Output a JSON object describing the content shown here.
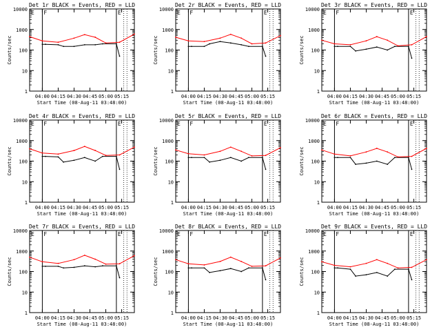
{
  "colors": {
    "events": "#000000",
    "lld": "#ff0000",
    "axes": "#000000",
    "background": "#ffffff"
  },
  "chart_data": [
    {
      "type": "line",
      "title": "Det 1r BLACK = Events, RED = LLD",
      "xlabel": "Start Time (08-Aug-11 03:48:00)",
      "ylabel": "Counts/sec",
      "yscale": "log",
      "ylim": [
        1,
        10000
      ],
      "xlim": [
        "03:48",
        "05:27"
      ],
      "yticks": [
        "1",
        "10",
        "100",
        "1000",
        "10000"
      ],
      "xticks": [
        "04:00",
        "04:15",
        "04:30",
        "04:45",
        "05:00",
        "05:15"
      ],
      "markers": [
        "E",
        "F",
        "E"
      ],
      "series": [
        {
          "name": "Events",
          "x": [
            "04:00",
            "04:03",
            "04:15",
            "04:20",
            "04:30",
            "04:40",
            "04:50",
            "04:57",
            "05:10",
            "05:13"
          ],
          "y": [
            190,
            190,
            180,
            150,
            150,
            180,
            180,
            200,
            200,
            50
          ]
        },
        {
          "name": "LLD",
          "x": [
            "03:48",
            "04:00",
            "04:15",
            "04:30",
            "04:40",
            "04:50",
            "05:00",
            "05:13",
            "05:27"
          ],
          "y": [
            450,
            280,
            240,
            380,
            560,
            420,
            220,
            240,
            600
          ]
        }
      ]
    },
    {
      "type": "line",
      "title": "Det 2r BLACK = Events, RED = LLD",
      "xlabel": "Start Time (08-Aug-11 03:48:00)",
      "ylabel": "Counts/sec",
      "yscale": "log",
      "ylim": [
        1,
        10000
      ],
      "xlim": [
        "03:48",
        "05:27"
      ],
      "yticks": [
        "1",
        "10",
        "100",
        "1000",
        "10000"
      ],
      "xticks": [
        "04:00",
        "04:15",
        "04:30",
        "04:45",
        "05:00",
        "05:15"
      ],
      "markers": [
        "E",
        "F",
        "E"
      ],
      "series": [
        {
          "name": "Events",
          "x": [
            "04:00",
            "04:03",
            "04:15",
            "04:20",
            "04:30",
            "04:40",
            "04:50",
            "04:57",
            "05:10",
            "05:13"
          ],
          "y": [
            150,
            150,
            150,
            200,
            260,
            220,
            180,
            150,
            150,
            50
          ]
        },
        {
          "name": "LLD",
          "x": [
            "03:48",
            "04:00",
            "04:15",
            "04:30",
            "04:40",
            "04:50",
            "05:00",
            "05:13",
            "05:27"
          ],
          "y": [
            420,
            280,
            260,
            380,
            580,
            380,
            200,
            220,
            500
          ]
        }
      ]
    },
    {
      "type": "line",
      "title": "Det 3r BLACK = Events, RED = LLD",
      "xlabel": "Start Time (08-Aug-11 03:48:00)",
      "ylabel": "Counts/sec",
      "yscale": "log",
      "ylim": [
        1,
        10000
      ],
      "xlim": [
        "03:48",
        "05:27"
      ],
      "yticks": [
        "1",
        "10",
        "100",
        "1000",
        "10000"
      ],
      "xticks": [
        "04:00",
        "04:15",
        "04:30",
        "04:45",
        "05:00",
        "05:15"
      ],
      "markers": [
        "E",
        "F",
        "E"
      ],
      "series": [
        {
          "name": "Events",
          "x": [
            "04:00",
            "04:03",
            "04:15",
            "04:20",
            "04:30",
            "04:40",
            "04:50",
            "04:57",
            "05:10",
            "05:13"
          ],
          "y": [
            150,
            150,
            150,
            90,
            110,
            140,
            100,
            150,
            150,
            40
          ]
        },
        {
          "name": "LLD",
          "x": [
            "03:48",
            "04:00",
            "04:15",
            "04:30",
            "04:40",
            "04:50",
            "05:00",
            "05:13",
            "05:27"
          ],
          "y": [
            300,
            200,
            180,
            280,
            450,
            300,
            160,
            180,
            450
          ]
        }
      ]
    },
    {
      "type": "line",
      "title": "Det 4r BLACK = Events, RED = LLD",
      "xlabel": "Start Time (08-Aug-11 03:48:00)",
      "ylabel": "Counts/sec",
      "yscale": "log",
      "ylim": [
        1,
        10000
      ],
      "xlim": [
        "03:48",
        "05:27"
      ],
      "yticks": [
        "1",
        "10",
        "100",
        "1000",
        "10000"
      ],
      "xticks": [
        "04:00",
        "04:15",
        "04:30",
        "04:45",
        "05:00",
        "05:15"
      ],
      "markers": [
        "E",
        "F",
        "E"
      ],
      "series": [
        {
          "name": "Events",
          "x": [
            "04:00",
            "04:03",
            "04:15",
            "04:20",
            "04:30",
            "04:40",
            "04:50",
            "04:57",
            "05:10",
            "05:13"
          ],
          "y": [
            170,
            170,
            160,
            90,
            110,
            150,
            100,
            170,
            170,
            40
          ]
        },
        {
          "name": "LLD",
          "x": [
            "03:48",
            "04:00",
            "04:15",
            "04:30",
            "04:40",
            "04:50",
            "05:00",
            "05:13",
            "05:27"
          ],
          "y": [
            400,
            250,
            220,
            330,
            520,
            330,
            190,
            200,
            480
          ]
        }
      ]
    },
    {
      "type": "line",
      "title": "Det 5r BLACK = Events, RED = LLD",
      "xlabel": "Start Time (08-Aug-11 03:48:00)",
      "ylabel": "Counts/sec",
      "yscale": "log",
      "ylim": [
        1,
        10000
      ],
      "xlim": [
        "03:48",
        "05:27"
      ],
      "yticks": [
        "1",
        "10",
        "100",
        "1000",
        "10000"
      ],
      "xticks": [
        "04:00",
        "04:15",
        "04:30",
        "04:45",
        "05:00",
        "05:15"
      ],
      "markers": [
        "E",
        "F",
        "E"
      ],
      "series": [
        {
          "name": "Events",
          "x": [
            "04:00",
            "04:03",
            "04:15",
            "04:20",
            "04:30",
            "04:40",
            "04:50",
            "04:57",
            "05:10",
            "05:13"
          ],
          "y": [
            150,
            150,
            150,
            90,
            110,
            150,
            100,
            150,
            150,
            40
          ]
        },
        {
          "name": "LLD",
          "x": [
            "03:48",
            "04:00",
            "04:15",
            "04:30",
            "04:40",
            "04:50",
            "05:00",
            "05:13",
            "05:27"
          ],
          "y": [
            350,
            230,
            200,
            300,
            480,
            300,
            180,
            190,
            450
          ]
        }
      ]
    },
    {
      "type": "line",
      "title": "Det 6r BLACK = Events, RED = LLD",
      "xlabel": "Start Time (08-Aug-11 03:48:00)",
      "ylabel": "Counts/sec",
      "yscale": "log",
      "ylim": [
        1,
        10000
      ],
      "xlim": [
        "03:48",
        "05:27"
      ],
      "yticks": [
        "1",
        "10",
        "100",
        "1000",
        "10000"
      ],
      "xticks": [
        "04:00",
        "04:15",
        "04:30",
        "04:45",
        "05:00",
        "05:15"
      ],
      "markers": [
        "E",
        "F",
        "E"
      ],
      "series": [
        {
          "name": "Events",
          "x": [
            "04:00",
            "04:03",
            "04:15",
            "04:20",
            "04:30",
            "04:40",
            "04:50",
            "04:57",
            "05:10",
            "05:13"
          ],
          "y": [
            150,
            150,
            150,
            70,
            80,
            100,
            70,
            150,
            150,
            40
          ]
        },
        {
          "name": "LLD",
          "x": [
            "03:48",
            "04:00",
            "04:15",
            "04:30",
            "04:40",
            "04:50",
            "05:00",
            "05:13",
            "05:27"
          ],
          "y": [
            350,
            220,
            180,
            280,
            420,
            280,
            160,
            170,
            420
          ]
        }
      ]
    },
    {
      "type": "line",
      "title": "Det 7r BLACK = Events, RED = LLD",
      "xlabel": "Start Time (08-Aug-11 03:48:00)",
      "ylabel": "Counts/sec",
      "yscale": "log",
      "ylim": [
        1,
        10000
      ],
      "xlim": [
        "03:48",
        "05:27"
      ],
      "yticks": [
        "1",
        "10",
        "100",
        "1000",
        "10000"
      ],
      "xticks": [
        "04:00",
        "04:15",
        "04:30",
        "04:45",
        "05:00",
        "05:15"
      ],
      "markers": [
        "E",
        "F",
        "E"
      ],
      "series": [
        {
          "name": "Events",
          "x": [
            "04:00",
            "04:03",
            "04:15",
            "04:20",
            "04:30",
            "04:40",
            "04:50",
            "04:57",
            "05:10",
            "05:13"
          ],
          "y": [
            180,
            180,
            180,
            150,
            160,
            190,
            170,
            190,
            190,
            50
          ]
        },
        {
          "name": "LLD",
          "x": [
            "03:48",
            "04:00",
            "04:15",
            "04:30",
            "04:40",
            "04:50",
            "05:00",
            "05:13",
            "05:27"
          ],
          "y": [
            500,
            300,
            250,
            380,
            620,
            400,
            230,
            240,
            600
          ]
        }
      ]
    },
    {
      "type": "line",
      "title": "Det 8r BLACK = Events, RED = LLD",
      "xlabel": "Start Time (08-Aug-11 03:48:00)",
      "ylabel": "Counts/sec",
      "yscale": "log",
      "ylim": [
        1,
        10000
      ],
      "xlim": [
        "03:48",
        "05:27"
      ],
      "yticks": [
        "1",
        "10",
        "100",
        "1000",
        "10000"
      ],
      "xticks": [
        "04:00",
        "04:15",
        "04:30",
        "04:45",
        "05:00",
        "05:15"
      ],
      "markers": [
        "E",
        "F",
        "E"
      ],
      "series": [
        {
          "name": "Events",
          "x": [
            "04:00",
            "04:03",
            "04:15",
            "04:20",
            "04:30",
            "04:40",
            "04:50",
            "04:57",
            "05:10",
            "05:13"
          ],
          "y": [
            150,
            150,
            150,
            90,
            110,
            140,
            100,
            150,
            150,
            40
          ]
        },
        {
          "name": "LLD",
          "x": [
            "03:48",
            "04:00",
            "04:15",
            "04:30",
            "04:40",
            "04:50",
            "05:00",
            "05:13",
            "05:27"
          ],
          "y": [
            380,
            240,
            210,
            310,
            500,
            310,
            180,
            190,
            460
          ]
        }
      ]
    },
    {
      "type": "line",
      "title": "Det 9r BLACK = Events, RED = LLD",
      "xlabel": "Start Time (08-Aug-11 03:48:00)",
      "ylabel": "Counts/sec",
      "yscale": "log",
      "ylim": [
        1,
        10000
      ],
      "xlim": [
        "03:48",
        "05:27"
      ],
      "yticks": [
        "1",
        "10",
        "100",
        "1000",
        "10000"
      ],
      "xticks": [
        "04:00",
        "04:15",
        "04:30",
        "04:45",
        "05:00",
        "05:15"
      ],
      "markers": [
        "E",
        "F",
        "E"
      ],
      "series": [
        {
          "name": "Events",
          "x": [
            "04:00",
            "04:03",
            "04:15",
            "04:20",
            "04:30",
            "04:40",
            "04:50",
            "04:57",
            "05:10",
            "05:13"
          ],
          "y": [
            150,
            150,
            130,
            60,
            70,
            90,
            60,
            130,
            130,
            40
          ]
        },
        {
          "name": "LLD",
          "x": [
            "03:48",
            "04:00",
            "04:15",
            "04:30",
            "04:40",
            "04:50",
            "05:00",
            "05:13",
            "05:27"
          ],
          "y": [
            300,
            200,
            170,
            250,
            380,
            250,
            150,
            160,
            380
          ]
        }
      ]
    }
  ]
}
